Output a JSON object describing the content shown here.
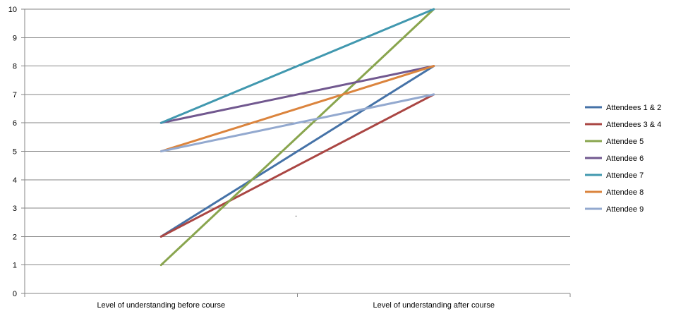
{
  "chart_data": {
    "type": "line",
    "title": "",
    "xlabel": "",
    "ylabel": "",
    "categories": [
      "Level of understanding before course",
      "Level of understanding after course"
    ],
    "ylim": [
      0,
      10
    ],
    "yticks": [
      0,
      1,
      2,
      3,
      4,
      5,
      6,
      7,
      8,
      9,
      10
    ],
    "grid": true,
    "legend_position": "right",
    "series": [
      {
        "name": "Attendees 1 & 2",
        "values": [
          2,
          8
        ],
        "color": "#4572A7"
      },
      {
        "name": "Attendees 3 & 4",
        "values": [
          2,
          7
        ],
        "color": "#AA4643"
      },
      {
        "name": "Attendee 5",
        "values": [
          1,
          10
        ],
        "color": "#89A54E"
      },
      {
        "name": "Attendee 6",
        "values": [
          6,
          8
        ],
        "color": "#71588F"
      },
      {
        "name": "Attendee 7",
        "values": [
          6,
          10
        ],
        "color": "#4198AF"
      },
      {
        "name": "Attendee 8",
        "values": [
          5,
          8
        ],
        "color": "#DB843D"
      },
      {
        "name": "Attendee 9",
        "values": [
          5,
          7
        ],
        "color": "#93A9CF"
      }
    ],
    "annotations": [
      "."
    ]
  }
}
